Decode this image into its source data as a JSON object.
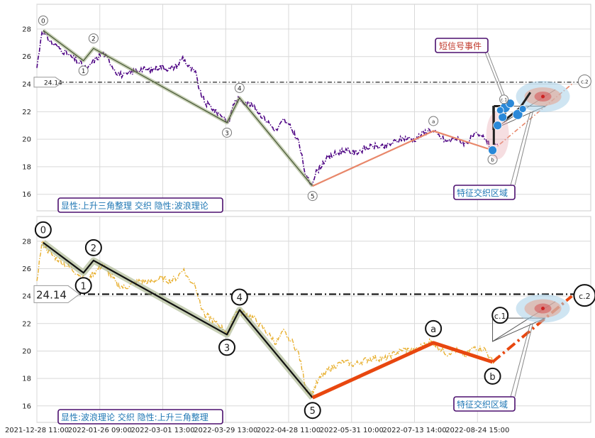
{
  "chart_data": [
    {
      "type": "line",
      "panel": "top",
      "ylim": [
        14.8,
        29.8
      ],
      "yticks": [
        16,
        18,
        20,
        22,
        24,
        26,
        28
      ],
      "series_color": "#4b0082",
      "series_style": "dash-dot",
      "price_anchors": [
        [
          0,
          25.2
        ],
        [
          2,
          26.5
        ],
        [
          4,
          27.9
        ],
        [
          8,
          27.4
        ],
        [
          12,
          27.0
        ],
        [
          18,
          26.6
        ],
        [
          24,
          26.2
        ],
        [
          30,
          25.8
        ],
        [
          36,
          25.4
        ],
        [
          40,
          25.0
        ],
        [
          44,
          25.6
        ],
        [
          48,
          25.9
        ],
        [
          52,
          26.3
        ],
        [
          58,
          25.6
        ],
        [
          64,
          24.8
        ],
        [
          70,
          24.6
        ],
        [
          76,
          24.9
        ],
        [
          82,
          25.1
        ],
        [
          90,
          25.0
        ],
        [
          98,
          25.3
        ],
        [
          106,
          25.1
        ],
        [
          112,
          25.4
        ],
        [
          116,
          26.0
        ],
        [
          120,
          25.3
        ],
        [
          126,
          24.8
        ],
        [
          130,
          23.3
        ],
        [
          134,
          22.6
        ],
        [
          138,
          22.4
        ],
        [
          142,
          22.0
        ],
        [
          146,
          21.8
        ],
        [
          150,
          21.5
        ],
        [
          152,
          21.0
        ],
        [
          156,
          22.6
        ],
        [
          160,
          22.9
        ],
        [
          166,
          22.7
        ],
        [
          172,
          22.4
        ],
        [
          178,
          21.8
        ],
        [
          184,
          21.2
        ],
        [
          190,
          20.6
        ],
        [
          196,
          21.4
        ],
        [
          202,
          20.8
        ],
        [
          208,
          19.8
        ],
        [
          214,
          17.2
        ],
        [
          218,
          16.8
        ],
        [
          222,
          17.6
        ],
        [
          228,
          18.4
        ],
        [
          236,
          18.9
        ],
        [
          244,
          19.2
        ],
        [
          252,
          19.0
        ],
        [
          260,
          19.3
        ],
        [
          268,
          19.5
        ],
        [
          276,
          19.4
        ],
        [
          284,
          19.8
        ],
        [
          292,
          20.1
        ],
        [
          300,
          20.0
        ],
        [
          306,
          20.4
        ],
        [
          312,
          20.7
        ],
        [
          316,
          20.5
        ],
        [
          320,
          20.2
        ],
        [
          326,
          19.8
        ],
        [
          332,
          20.1
        ],
        [
          340,
          19.7
        ],
        [
          348,
          20.3
        ],
        [
          356,
          20.1
        ],
        [
          362,
          19.2
        ],
        [
          366,
          19.6
        ]
      ],
      "wave_points": [
        {
          "label": "0",
          "x": 5,
          "y": 27.9
        },
        {
          "label": "1",
          "x": 37,
          "y": 25.7
        },
        {
          "label": "2",
          "x": 45,
          "y": 26.6
        },
        {
          "label": "3",
          "x": 151,
          "y": 21.2
        },
        {
          "label": "4",
          "x": 161,
          "y": 23.0
        },
        {
          "label": "5",
          "x": 219,
          "y": 16.6
        }
      ],
      "abc_points": [
        {
          "label": "a",
          "x": 315,
          "y": 20.6
        },
        {
          "label": "b",
          "x": 362,
          "y": 19.2
        },
        {
          "label": "c.2",
          "x": 425,
          "y": 24.0
        }
      ],
      "hline_value": 24.14,
      "hline_label": "24.14",
      "labels": {
        "event": "短信号事件",
        "zone": "特征交织区域",
        "legend": "显性:上升三角整理 交织 隐性:波浪理论",
        "c1": "c.1",
        "c2": "c.2"
      }
    },
    {
      "type": "line",
      "panel": "bottom",
      "ylim": [
        14.8,
        29.8
      ],
      "yticks": [
        16,
        18,
        20,
        22,
        24,
        26,
        28
      ],
      "series_color": "#e8b030",
      "series_style": "dash-dot",
      "wave_points": [
        {
          "label": "0",
          "x": 5,
          "y": 27.9
        },
        {
          "label": "1",
          "x": 37,
          "y": 25.7
        },
        {
          "label": "2",
          "x": 45,
          "y": 26.6
        },
        {
          "label": "3",
          "x": 151,
          "y": 21.2
        },
        {
          "label": "4",
          "x": 161,
          "y": 23.0
        },
        {
          "label": "5",
          "x": 219,
          "y": 16.6
        }
      ],
      "abc_points": [
        {
          "label": "a",
          "x": 315,
          "y": 20.6
        },
        {
          "label": "b",
          "x": 362,
          "y": 19.2
        },
        {
          "label": "c.1",
          "x": 368,
          "y": 22.5
        },
        {
          "label": "c.2",
          "x": 425,
          "y": 24.0
        }
      ],
      "hline_value": 24.14,
      "hline_label": "24.14",
      "labels": {
        "zone": "特征交织区域",
        "legend": "显性:波浪理论 交织 隐性:上升三角整理",
        "c1": "c.1",
        "c2": "c.2"
      }
    }
  ],
  "x_axis": {
    "range": [
      0,
      440
    ],
    "ticks": [
      {
        "x": 0,
        "label": "2021-12-28 11:00"
      },
      {
        "x": 50,
        "label": "2022-01-26 09:00"
      },
      {
        "x": 100,
        "label": "2022-03-01 13:00"
      },
      {
        "x": 150,
        "label": "2022-03-29 13:00"
      },
      {
        "x": 200,
        "label": "2022-04-28 11:00"
      },
      {
        "x": 250,
        "label": "2022-05-31 10:00"
      },
      {
        "x": 300,
        "label": "2022-07-13 14:00"
      },
      {
        "x": 350,
        "label": "2022-08-24 15:00"
      }
    ]
  }
}
